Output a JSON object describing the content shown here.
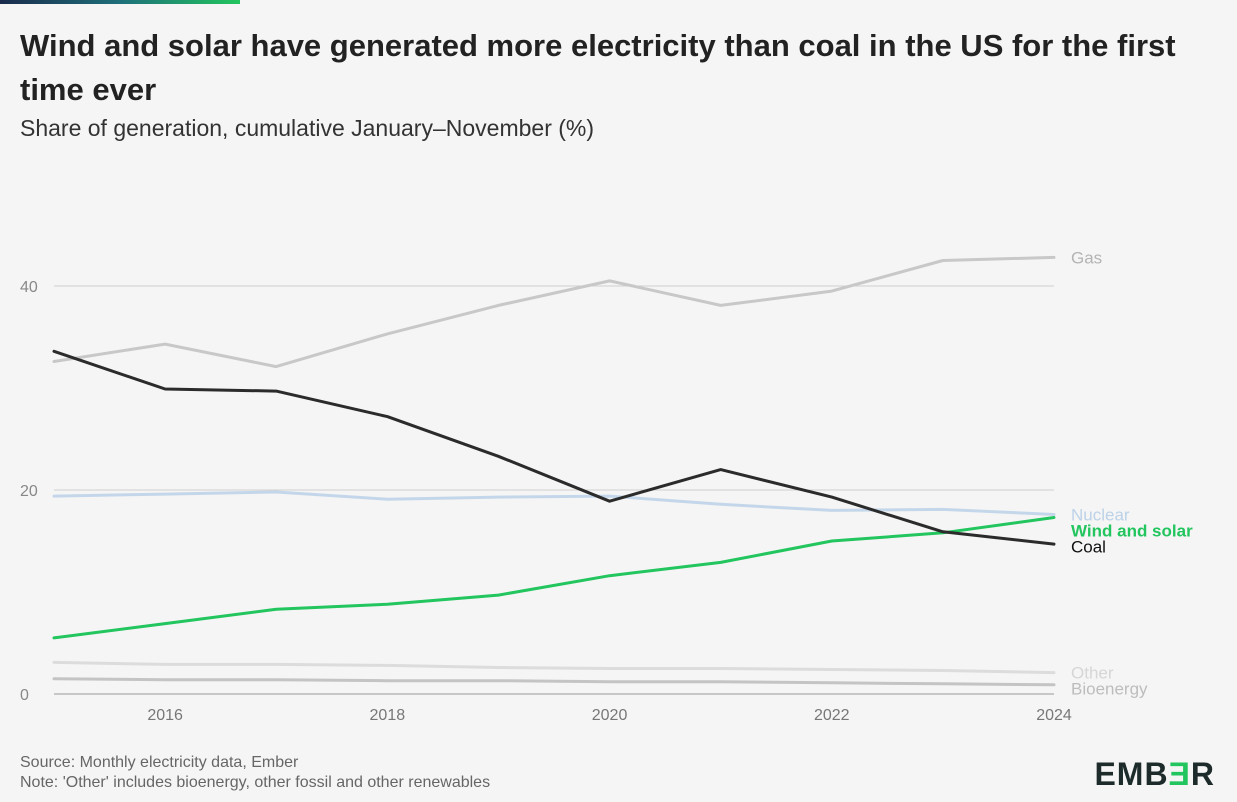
{
  "header": {
    "title": "Wind and solar have generated more electricity than coal in the US for the first time ever",
    "subtitle": "Share of generation, cumulative January–November (%)"
  },
  "footer": {
    "source": "Source: Monthly electricity data, Ember",
    "note": "Note: 'Other' includes bioenergy, other fossil and other renewables"
  },
  "brand": {
    "logo_prefix": "EMB",
    "logo_accent": "Ǝ",
    "logo_suffix": "R"
  },
  "chart_data": {
    "type": "line",
    "x": [
      2015,
      2016,
      2017,
      2018,
      2019,
      2020,
      2021,
      2022,
      2023,
      2024
    ],
    "xticks": [
      2016,
      2018,
      2020,
      2022,
      2024
    ],
    "yticks": [
      0,
      20,
      40
    ],
    "xlim": [
      2015,
      2024
    ],
    "ylim": [
      0,
      40
    ],
    "grid": true,
    "legend_placement": "direct labels at right",
    "series": [
      {
        "name": "Gas",
        "color": "#c8c8c8",
        "label_color": "#b4b4b4",
        "values": [
          32.6,
          34.3,
          32.1,
          35.3,
          38.1,
          40.5,
          38.1,
          39.5,
          42.5,
          42.8
        ]
      },
      {
        "name": "Nuclear",
        "color": "#c4d7ea",
        "label_color": "#bcd2e8",
        "values": [
          19.4,
          19.6,
          19.8,
          19.1,
          19.3,
          19.4,
          18.6,
          18.0,
          18.1,
          17.6
        ]
      },
      {
        "name": "Wind and solar",
        "color": "#22c55e",
        "label_color": "#22c55e",
        "values": [
          5.5,
          6.9,
          8.3,
          8.8,
          9.7,
          11.6,
          12.9,
          15.0,
          15.8,
          17.3
        ]
      },
      {
        "name": "Coal",
        "color": "#2b2b2b",
        "label_color": "#111111",
        "values": [
          33.6,
          29.9,
          29.7,
          27.2,
          23.3,
          18.9,
          22.0,
          19.3,
          15.9,
          14.7
        ]
      },
      {
        "name": "Other",
        "color": "#dcdcdc",
        "label_color": "#d6d6d6",
        "values": [
          3.1,
          2.9,
          2.9,
          2.8,
          2.6,
          2.5,
          2.5,
          2.4,
          2.3,
          2.1
        ]
      },
      {
        "name": "Bioenergy",
        "color": "#c4c4c4",
        "label_color": "#bdbdbd",
        "values": [
          1.5,
          1.4,
          1.4,
          1.3,
          1.3,
          1.2,
          1.2,
          1.1,
          1.0,
          0.9
        ]
      }
    ]
  }
}
